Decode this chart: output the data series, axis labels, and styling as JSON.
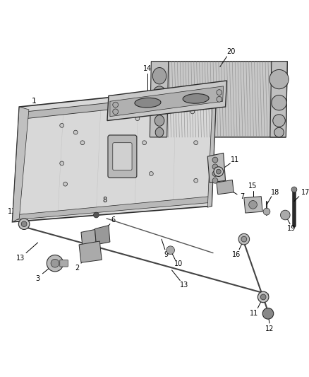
{
  "bg_color": "#ffffff",
  "fig_width": 4.38,
  "fig_height": 5.33,
  "dpi": 100,
  "label_fontsize": 7.5,
  "dgray": "#2a2a2a",
  "mgray": "#888888",
  "lgray": "#cccccc",
  "panel_fill": "#e0e0e0",
  "hatch_color": "#999999"
}
